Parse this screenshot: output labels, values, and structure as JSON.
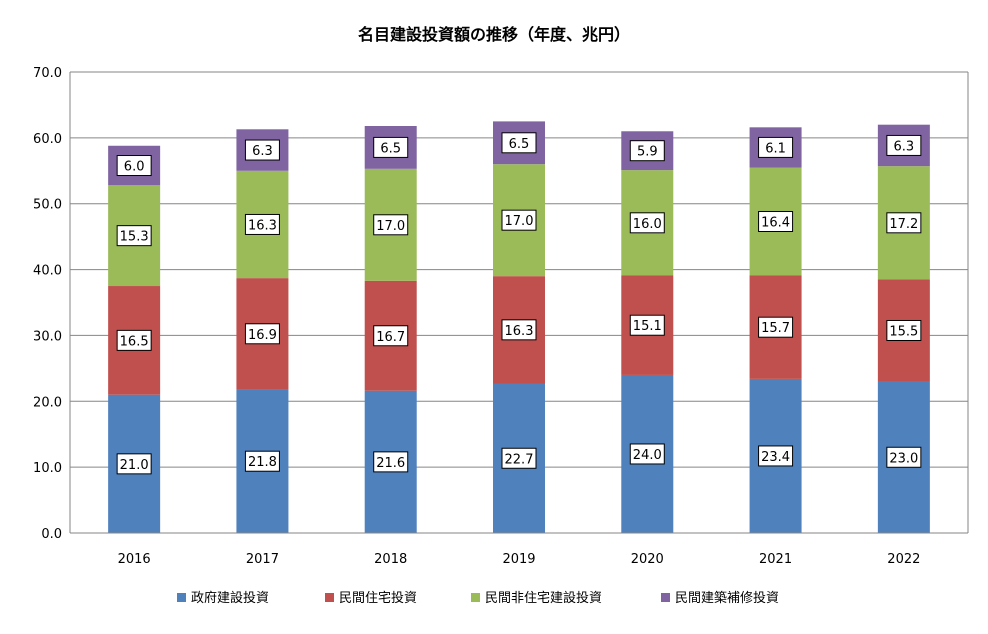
{
  "chart_data": {
    "type": "bar",
    "stacked": true,
    "title": "名目建設投資額の推移（年度、兆円）",
    "xlabel": "",
    "ylabel": "",
    "ylim": [
      0,
      70
    ],
    "yticks": [
      "0.0",
      "10.0",
      "20.0",
      "30.0",
      "40.0",
      "50.0",
      "60.0",
      "70.0"
    ],
    "grid": true,
    "legend_position": "bottom",
    "categories": [
      "2016",
      "2017",
      "2018",
      "2019",
      "2020",
      "2021",
      "2022"
    ],
    "series": [
      {
        "name": "政府建設投資",
        "color": "#4f81bd",
        "values": [
          21.0,
          21.8,
          21.6,
          22.7,
          24.0,
          23.4,
          23.0
        ]
      },
      {
        "name": "民間住宅投資",
        "color": "#c0504d",
        "values": [
          16.5,
          16.9,
          16.7,
          16.3,
          15.1,
          15.7,
          15.5
        ]
      },
      {
        "name": "民間非住宅建設投資",
        "color": "#9bbb59",
        "values": [
          15.3,
          16.3,
          17.0,
          17.0,
          16.0,
          16.4,
          17.2
        ]
      },
      {
        "name": "民間建築補修投資",
        "color": "#8064a2",
        "values": [
          6.0,
          6.3,
          6.5,
          6.5,
          5.9,
          6.1,
          6.3
        ]
      }
    ]
  }
}
